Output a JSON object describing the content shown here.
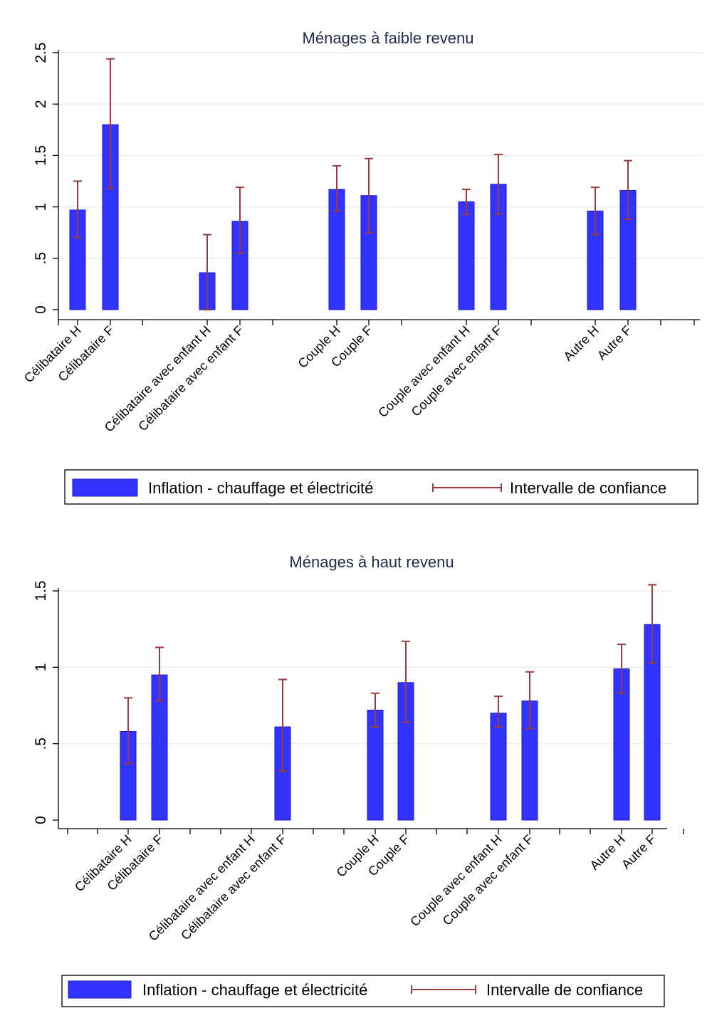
{
  "chart_data": [
    {
      "type": "bar",
      "title": "Ménages à faible revenu",
      "ylim": [
        0,
        2.5
      ],
      "yticks": [
        "0",
        ".5",
        "1",
        "1.5",
        "2",
        "2.5"
      ],
      "grid": true,
      "categories": [
        "Célibataire H",
        "Célibataire F",
        "Célibataire avec enfant H",
        "Célibataire avec enfant F",
        "Couple H",
        "Couple F",
        "Couple avec enfant H",
        "Couple avec enfant F",
        "Autre H",
        "Autre F"
      ],
      "series": [
        {
          "name": "Inflation - chauffage et électricité",
          "values": [
            0.97,
            1.8,
            0.36,
            0.86,
            1.17,
            1.11,
            1.05,
            1.22,
            0.96,
            1.16
          ]
        },
        {
          "name": "Intervalle de confiance",
          "lower": [
            0.7,
            1.18,
            0.0,
            0.55,
            0.96,
            0.75,
            0.93,
            0.93,
            0.73,
            0.88
          ],
          "upper": [
            1.25,
            2.44,
            0.73,
            1.19,
            1.4,
            1.47,
            1.17,
            1.51,
            1.19,
            1.45
          ]
        }
      ],
      "legend": {
        "position": "bottom",
        "bar_label": "Inflation - chauffage et électricité",
        "ci_label": "Intervalle de confiance"
      }
    },
    {
      "type": "bar",
      "title": "Ménages à haut revenu",
      "ylim": [
        0,
        1.5
      ],
      "yticks": [
        "0",
        ".5",
        "1",
        "1.5"
      ],
      "grid": true,
      "categories": [
        "Célibataire H",
        "Célibataire F",
        "Célibataire avec enfant H",
        "Célibataire avec enfant F",
        "Couple H",
        "Couple F",
        "Couple avec enfant H",
        "Couple avec enfant F",
        "Autre H",
        "Autre F"
      ],
      "series": [
        {
          "name": "Inflation - chauffage et électricité",
          "values": [
            0.58,
            0.95,
            null,
            0.61,
            0.72,
            0.9,
            0.7,
            0.78,
            0.99,
            1.28
          ]
        },
        {
          "name": "Intervalle de confiance",
          "lower": [
            0.37,
            0.78,
            null,
            0.32,
            0.61,
            0.64,
            0.61,
            0.6,
            0.83,
            1.03
          ],
          "upper": [
            0.8,
            1.13,
            null,
            0.92,
            0.83,
            1.17,
            0.81,
            0.97,
            1.15,
            1.54
          ]
        }
      ],
      "legend": {
        "position": "bottom",
        "bar_label": "Inflation - chauffage et électricité",
        "ci_label": "Intervalle de confiance"
      }
    }
  ],
  "colors": {
    "bar_fill": "#3333ff",
    "bar_stroke": "#1a1acc",
    "ci": "#9b3b3b",
    "grid": "#e6eef0",
    "axis": "#000000",
    "title": "#1e2a4a"
  }
}
